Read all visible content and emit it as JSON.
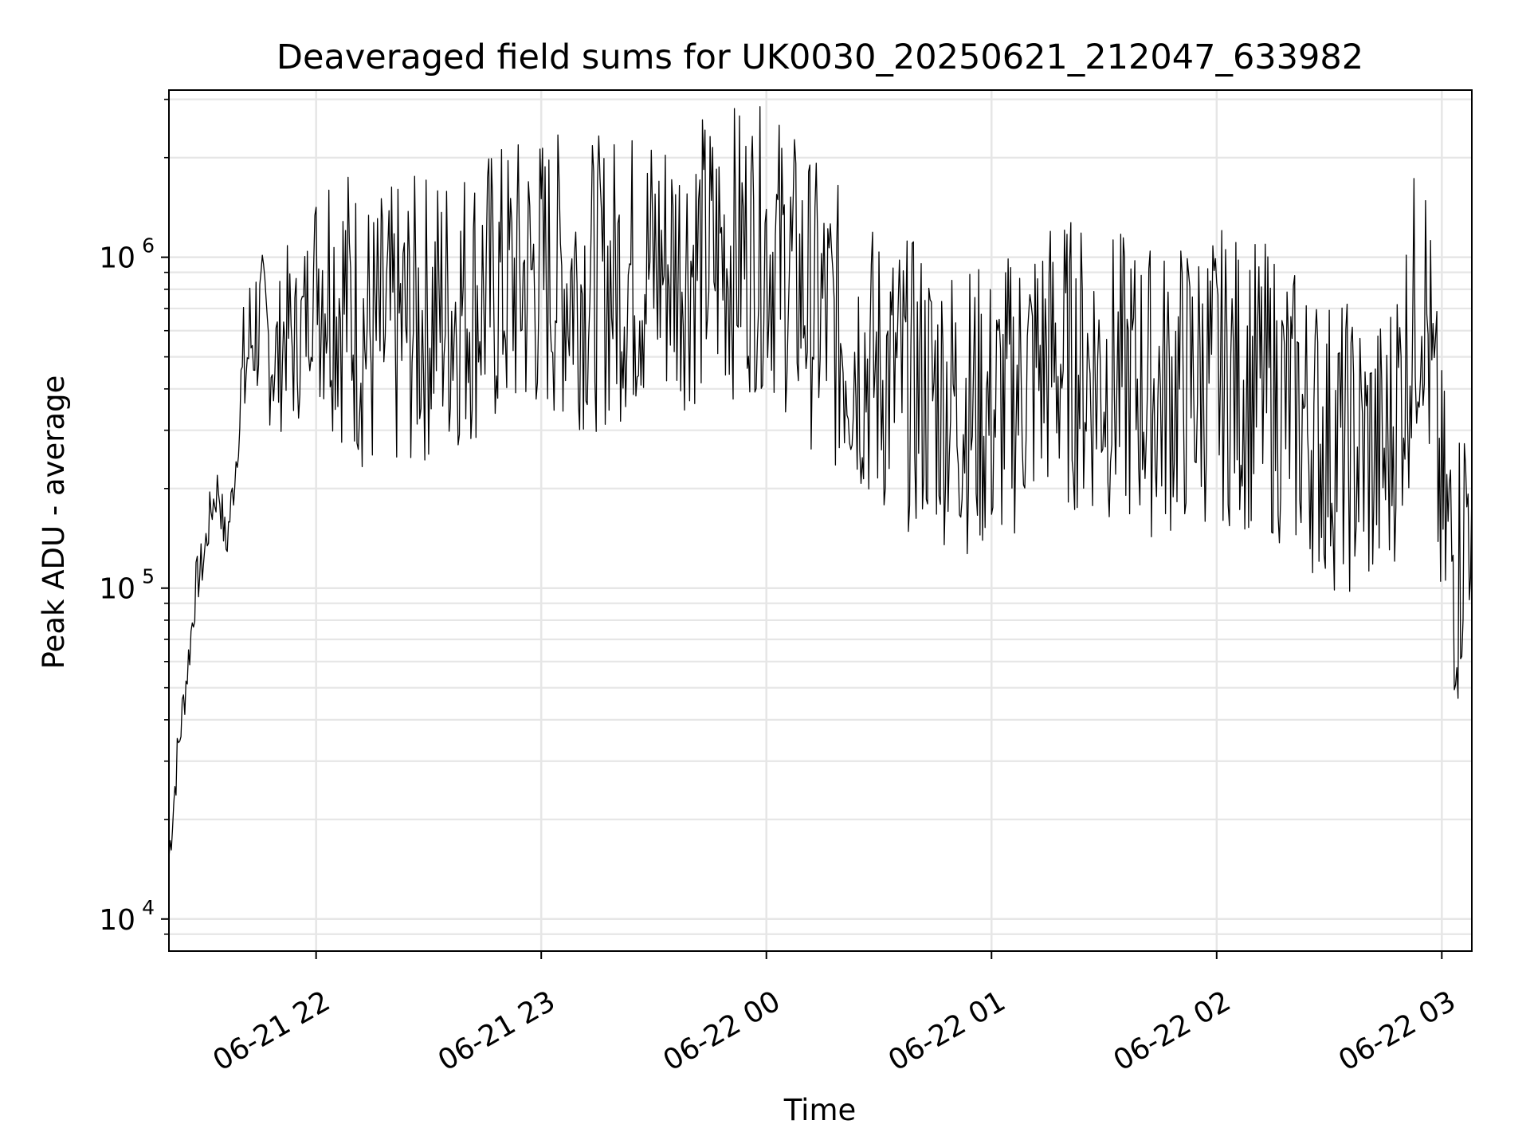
{
  "chart_data": {
    "type": "line",
    "title": "Deaveraged field sums for UK0030_20250621_212047_633982",
    "xlabel": "Time",
    "ylabel": "Peak ADU - average",
    "yscale": "log",
    "ylim": [
      8000,
      3200000
    ],
    "xlim": [
      "2025-06-21 21:20:47",
      "2025-06-22 03:08:00"
    ],
    "grid": true,
    "line_color": "#000000",
    "x_ticks": [
      {
        "value": "2025-06-21 22:00",
        "label": "06-21 22"
      },
      {
        "value": "2025-06-21 23:00",
        "label": "06-21 23"
      },
      {
        "value": "2025-06-22 00:00",
        "label": "06-22 00"
      },
      {
        "value": "2025-06-22 01:00",
        "label": "06-22 01"
      },
      {
        "value": "2025-06-22 02:00",
        "label": "06-22 02"
      },
      {
        "value": "2025-06-22 03:00",
        "label": "06-22 03"
      }
    ],
    "y_ticks": [
      {
        "value": 10000,
        "base": "10",
        "exp": "4"
      },
      {
        "value": 100000,
        "base": "10",
        "exp": "5"
      },
      {
        "value": 1000000,
        "base": "10",
        "exp": "6"
      }
    ],
    "series": [
      {
        "x": [
          "2025-06-21 21:20:47",
          "2025-06-21 21:23:00",
          "2025-06-21 21:26:00",
          "2025-06-21 21:28:00",
          "2025-06-21 21:30:00",
          "2025-06-21 21:32:00",
          "2025-06-21 21:34:00",
          "2025-06-21 21:36:00",
          "2025-06-21 21:38:00",
          "2025-06-21 21:40:00",
          "2025-06-21 21:42:00",
          "2025-06-21 21:44:00",
          "2025-06-21 21:46:00",
          "2025-06-21 21:48:00",
          "2025-06-21 21:50:00",
          "2025-06-21 21:52:00",
          "2025-06-21 21:54:00",
          "2025-06-21 21:56:00",
          "2025-06-21 21:58:00",
          "2025-06-21 22:00:00",
          "2025-06-21 22:15:00",
          "2025-06-21 22:30:00",
          "2025-06-21 22:45:00",
          "2025-06-21 23:00:00",
          "2025-06-21 23:15:00",
          "2025-06-21 23:30:00",
          "2025-06-21 23:45:00",
          "2025-06-22 00:00:00",
          "2025-06-22 00:15:00",
          "2025-06-22 00:30:00",
          "2025-06-22 00:45:00",
          "2025-06-22 01:00:00",
          "2025-06-22 01:15:00",
          "2025-06-22 01:30:00",
          "2025-06-22 01:45:00",
          "2025-06-22 02:00:00",
          "2025-06-22 02:15:00",
          "2025-06-22 02:30:00",
          "2025-06-22 02:45:00",
          "2025-06-22 02:55:00",
          "2025-06-22 03:00:00",
          "2025-06-22 03:04:00",
          "2025-06-22 03:08:00"
        ],
        "y": [
          15000,
          30000,
          60000,
          100000,
          120000,
          170000,
          200000,
          130000,
          200000,
          350000,
          500000,
          600000,
          550000,
          500000,
          450000,
          600000,
          500000,
          550000,
          700000,
          900000,
          500000,
          600000,
          700000,
          800000,
          750000,
          850000,
          900000,
          1000000,
          600000,
          400000,
          350000,
          300000,
          450000,
          400000,
          350000,
          400000,
          350000,
          250000,
          220000,
          800000,
          150000,
          100000,
          200000
        ]
      }
    ]
  }
}
